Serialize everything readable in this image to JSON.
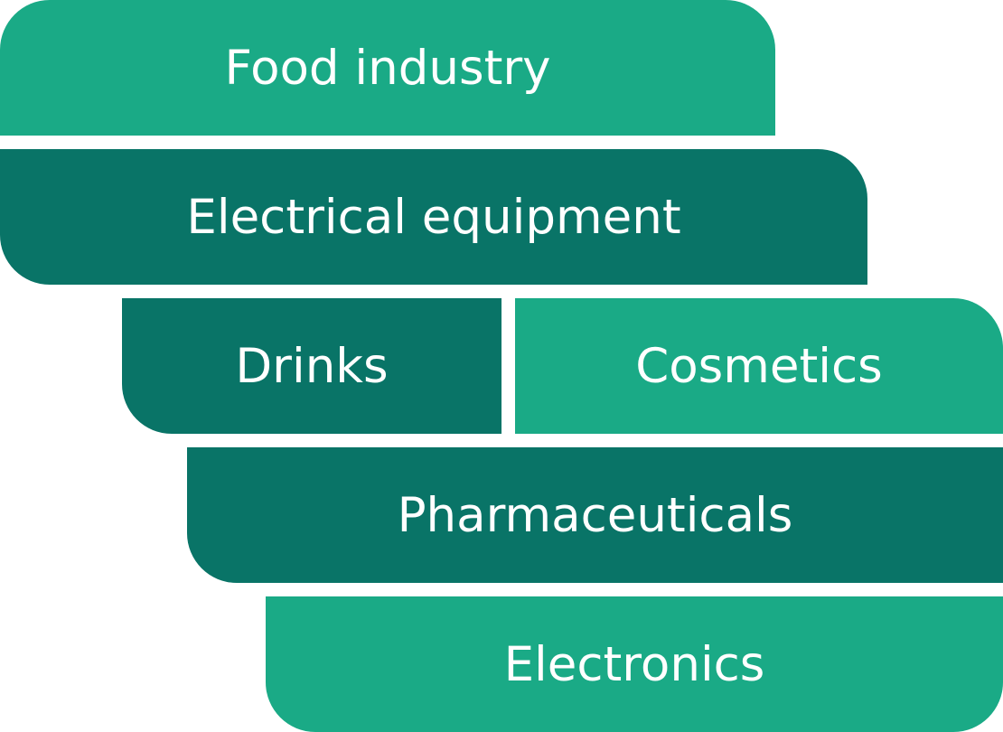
{
  "diagram": {
    "blocks": [
      {
        "id": "food",
        "label": "Food industry",
        "color": "#1aaa86"
      },
      {
        "id": "electrical",
        "label": "Electrical equipment",
        "color": "#097467"
      },
      {
        "id": "drinks",
        "label": "Drinks",
        "color": "#097467"
      },
      {
        "id": "cosmetics",
        "label": "Cosmetics",
        "color": "#1aaa86"
      },
      {
        "id": "pharma",
        "label": "Pharmaceuticals",
        "color": "#097467"
      },
      {
        "id": "electronics",
        "label": "Electronics",
        "color": "#1aaa86"
      }
    ]
  }
}
